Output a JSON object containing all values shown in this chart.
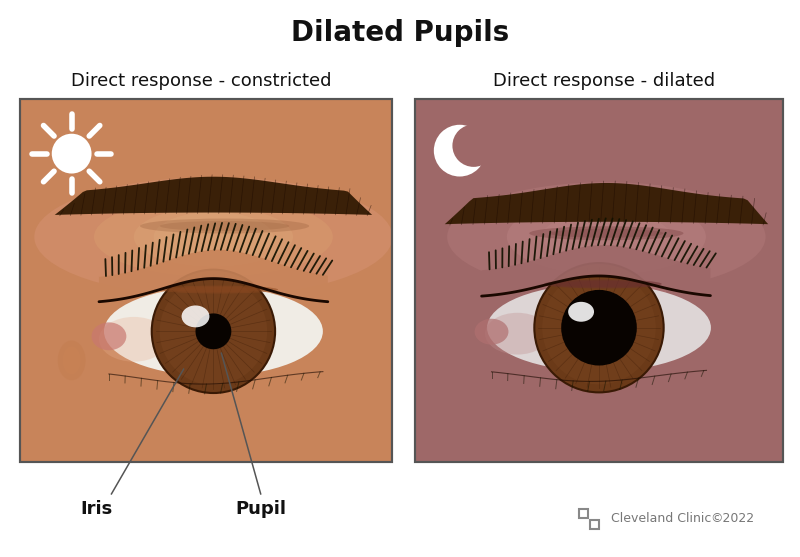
{
  "title": "Dilated Pupils",
  "title_fontsize": 20,
  "title_fontweight": "bold",
  "left_label": "Direct response - constricted",
  "right_label": "Direct response - dilated",
  "sublabel_fontsize": 13,
  "iris_label": "Iris",
  "pupil_label": "Pupil",
  "label_fontsize": 13,
  "cc_text": "©2022",
  "cc_clinic": "Cleveland Clinic",
  "bg_color": "#ffffff",
  "left_skin_base": "#c8845a",
  "left_skin_light": "#d4986a",
  "left_skin_highlight": "#e0b080",
  "right_skin_base": "#9e6868",
  "right_skin_mid": "#8a5050",
  "right_skin_dark": "#6a3535",
  "iris_color": "#6b3a18",
  "iris_edge": "#3a1a05",
  "pupil_color": "#080300",
  "sclera_left": "#f0ece5",
  "sclera_right": "#ddd5d5",
  "eyebrow_color": "#3a2008",
  "lash_color": "#111100",
  "sun_color": "#ffffff",
  "moon_color": "#ffffff",
  "line_color": "#555555",
  "annotation_color": "#555555"
}
